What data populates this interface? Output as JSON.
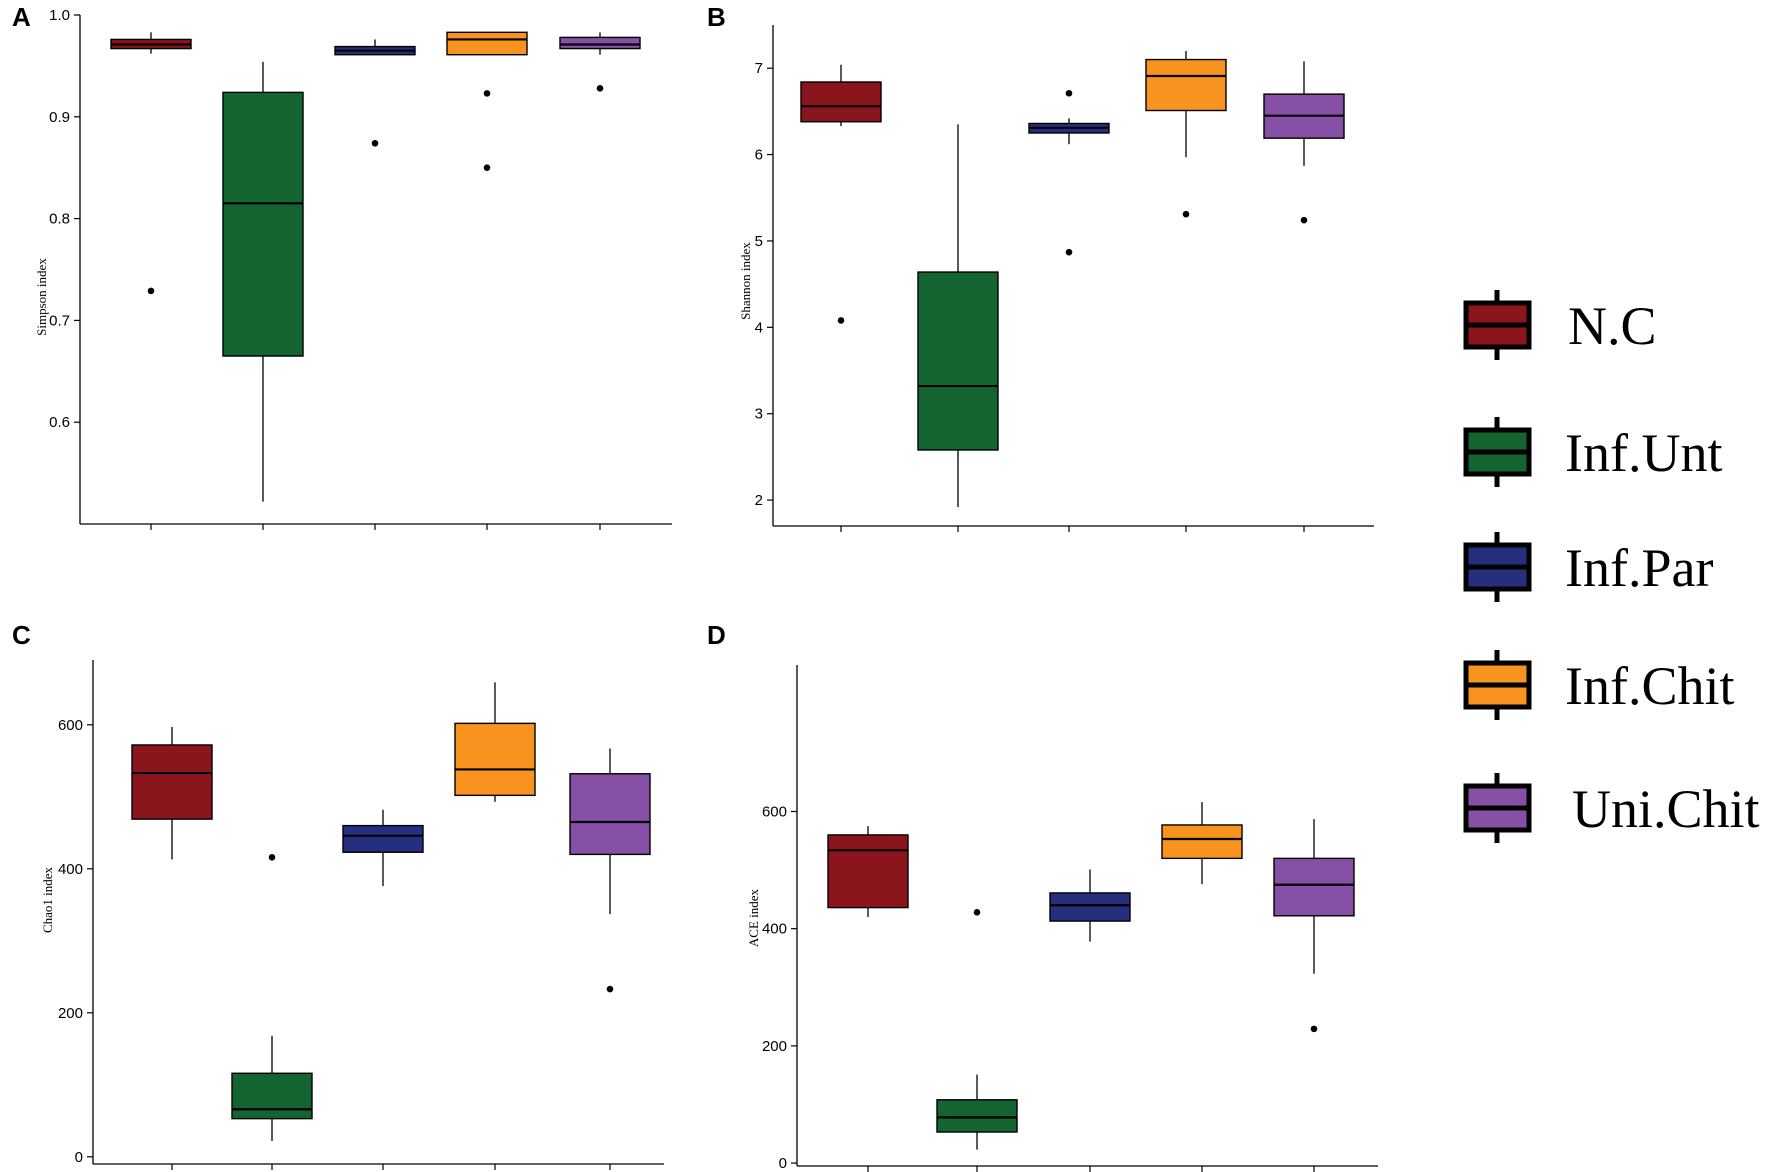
{
  "chart_data": [
    {
      "panel": "A",
      "type": "box",
      "ylabel": "Simpson index",
      "ylim": [
        0.5,
        1.0
      ],
      "yticks": [
        0.6,
        0.7,
        0.8,
        0.9,
        1.0
      ],
      "ytick_labels": [
        "0.6",
        "0.7",
        "0.8",
        "0.9",
        "1.0"
      ],
      "boxes": [
        {
          "group": "N.C",
          "whisker_low": 0.962,
          "q1": 0.967,
          "median": 0.971,
          "q3": 0.976,
          "whisker_high": 0.983,
          "outliers": [
            0.729
          ]
        },
        {
          "group": "Inf.Unt",
          "whisker_low": 0.522,
          "q1": 0.665,
          "median": 0.815,
          "q3": 0.924,
          "whisker_high": 0.954,
          "outliers": []
        },
        {
          "group": "Inf.Par",
          "whisker_low": 0.961,
          "q1": 0.961,
          "median": 0.965,
          "q3": 0.969,
          "whisker_high": 0.976,
          "outliers": [
            0.874
          ]
        },
        {
          "group": "Inf.Chit",
          "whisker_low": 0.961,
          "q1": 0.961,
          "median": 0.976,
          "q3": 0.983,
          "whisker_high": 0.983,
          "outliers": [
            0.923,
            0.85
          ]
        },
        {
          "group": "Uni.Chit",
          "whisker_low": 0.961,
          "q1": 0.967,
          "median": 0.971,
          "q3": 0.978,
          "whisker_high": 0.983,
          "outliers": [
            0.928
          ]
        }
      ]
    },
    {
      "panel": "B",
      "type": "box",
      "ylabel": "Shannon index",
      "ylim": [
        1.7,
        7.5
      ],
      "yticks": [
        2,
        3,
        4,
        5,
        6,
        7
      ],
      "ytick_labels": [
        "2",
        "3",
        "4",
        "5",
        "6",
        "7"
      ],
      "boxes": [
        {
          "group": "N.C",
          "whisker_low": 6.33,
          "q1": 6.38,
          "median": 6.56,
          "q3": 6.84,
          "whisker_high": 7.04,
          "outliers": [
            4.08
          ]
        },
        {
          "group": "Inf.Unt",
          "whisker_low": 1.92,
          "q1": 2.58,
          "median": 3.32,
          "q3": 4.64,
          "whisker_high": 6.35,
          "outliers": []
        },
        {
          "group": "Inf.Par",
          "whisker_low": 6.12,
          "q1": 6.25,
          "median": 6.31,
          "q3": 6.36,
          "whisker_high": 6.42,
          "outliers": [
            6.71,
            4.87
          ]
        },
        {
          "group": "Inf.Chit",
          "whisker_low": 5.97,
          "q1": 6.51,
          "median": 6.91,
          "q3": 7.1,
          "whisker_high": 7.2,
          "outliers": [
            5.31
          ]
        },
        {
          "group": "Uni.Chit",
          "whisker_low": 5.87,
          "q1": 6.19,
          "median": 6.45,
          "q3": 6.7,
          "whisker_high": 7.08,
          "outliers": [
            5.24
          ]
        }
      ]
    },
    {
      "panel": "C",
      "type": "box",
      "ylabel": "Chao1 index",
      "ylim": [
        -10,
        690
      ],
      "yticks": [
        0,
        200,
        400,
        600
      ],
      "ytick_labels": [
        "0",
        "200",
        "400",
        "600"
      ],
      "boxes": [
        {
          "group": "N.C",
          "whisker_low": 413,
          "q1": 469,
          "median": 533,
          "q3": 572,
          "whisker_high": 597,
          "outliers": []
        },
        {
          "group": "Inf.Unt",
          "whisker_low": 22,
          "q1": 53,
          "median": 66,
          "q3": 116,
          "whisker_high": 168,
          "outliers": [
            416
          ]
        },
        {
          "group": "Inf.Par",
          "whisker_low": 376,
          "q1": 423,
          "median": 446,
          "q3": 460,
          "whisker_high": 482,
          "outliers": []
        },
        {
          "group": "Inf.Chit",
          "whisker_low": 493,
          "q1": 502,
          "median": 538,
          "q3": 602,
          "whisker_high": 659,
          "outliers": []
        },
        {
          "group": "Uni.Chit",
          "whisker_low": 337,
          "q1": 420,
          "median": 465,
          "q3": 532,
          "whisker_high": 567,
          "outliers": [
            233
          ]
        }
      ]
    },
    {
      "panel": "D",
      "type": "box",
      "ylabel": "ACE index",
      "ylim": [
        -5,
        850
      ],
      "yticks": [
        0,
        200,
        400,
        600
      ],
      "ytick_labels": [
        "0",
        "200",
        "400",
        "600"
      ],
      "boxes": [
        {
          "group": "N.C",
          "whisker_low": 420,
          "q1": 436,
          "median": 534,
          "q3": 560,
          "whisker_high": 575,
          "outliers": []
        },
        {
          "group": "Inf.Unt",
          "whisker_low": 23,
          "q1": 53,
          "median": 78,
          "q3": 108,
          "whisker_high": 151,
          "outliers": [
            428
          ]
        },
        {
          "group": "Inf.Par",
          "whisker_low": 378,
          "q1": 413,
          "median": 440,
          "q3": 461,
          "whisker_high": 501,
          "outliers": []
        },
        {
          "group": "Inf.Chit",
          "whisker_low": 476,
          "q1": 520,
          "median": 553,
          "q3": 577,
          "whisker_high": 616,
          "outliers": []
        },
        {
          "group": "Uni.Chit",
          "whisker_low": 323,
          "q1": 422,
          "median": 475,
          "q3": 520,
          "whisker_high": 587,
          "outliers": [
            229
          ]
        }
      ]
    }
  ],
  "legend": {
    "items": [
      {
        "label": "N.C",
        "color": "#8b151c"
      },
      {
        "label": "Inf.Unt",
        "color": "#146432"
      },
      {
        "label": "Inf.Par",
        "color": "#262f7d"
      },
      {
        "label": "Inf.Chit",
        "color": "#f7931e"
      },
      {
        "label": "Uni.Chit",
        "color": "#8650a6"
      }
    ]
  }
}
